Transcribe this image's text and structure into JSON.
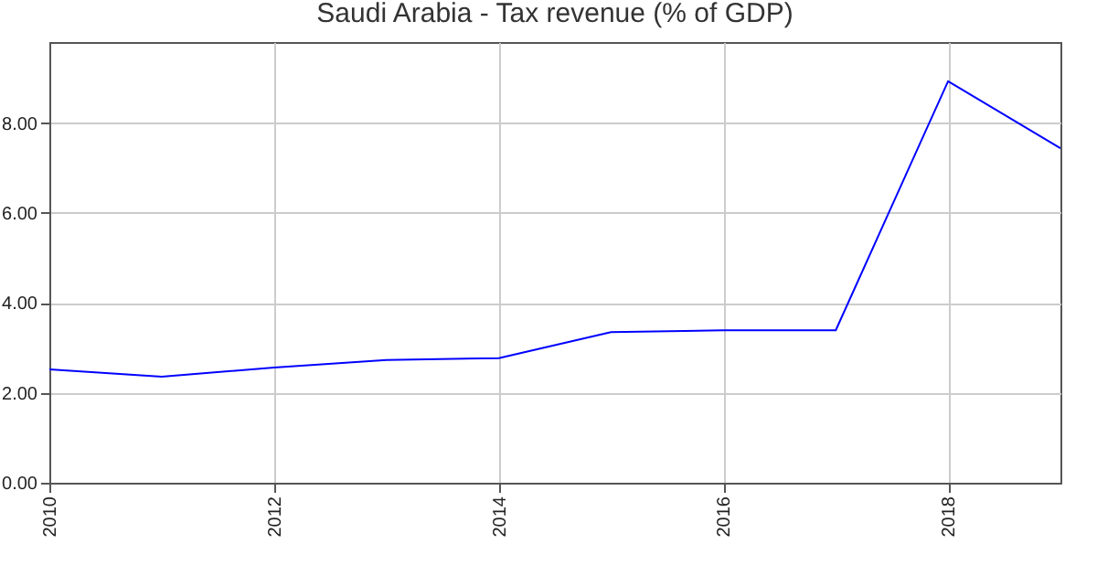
{
  "chart_data": {
    "type": "line",
    "title": "Saudi Arabia - Tax revenue (% of GDP)",
    "x": [
      2010,
      2011,
      2012,
      2013,
      2014,
      2015,
      2016,
      2017,
      2018,
      2019
    ],
    "series": [
      {
        "color": "#0000ff",
        "values": [
          2.52,
          2.36,
          2.56,
          2.73,
          2.77,
          3.35,
          3.39,
          3.39,
          8.93,
          7.44
        ]
      }
    ],
    "xlim": [
      2010,
      2019
    ],
    "xticks": [
      2010,
      2012,
      2014,
      2016,
      2018
    ],
    "ylim": [
      0,
      9.8
    ],
    "yticks": [
      {
        "value": 0,
        "label": "0.00"
      },
      {
        "value": 2,
        "label": "2.00"
      },
      {
        "value": 4,
        "label": "4.00"
      },
      {
        "value": 6,
        "label": "6.00"
      },
      {
        "value": 8,
        "label": "8.00"
      }
    ],
    "grid": true,
    "legend": false
  }
}
